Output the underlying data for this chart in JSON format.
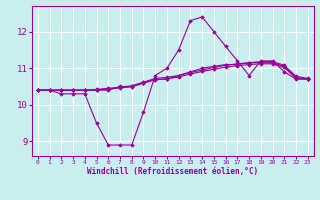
{
  "title": "",
  "xlabel": "Windchill (Refroidissement éolien,°C)",
  "ylabel": "",
  "bg_color": "#c8eef0",
  "grid_color": "#ffffff",
  "line_color": "#990099",
  "x_ticks": [
    0,
    1,
    2,
    3,
    4,
    5,
    6,
    7,
    8,
    9,
    10,
    11,
    12,
    13,
    14,
    15,
    16,
    17,
    18,
    19,
    20,
    21,
    22,
    23
  ],
  "ylim": [
    8.6,
    12.7
  ],
  "xlim": [
    -0.5,
    23.5
  ],
  "y_ticks": [
    9,
    10,
    11,
    12
  ],
  "series": [
    [
      10.4,
      10.4,
      10.3,
      10.3,
      10.3,
      9.5,
      8.9,
      8.9,
      8.9,
      9.8,
      10.8,
      11.0,
      11.5,
      12.3,
      12.4,
      12.0,
      11.6,
      11.2,
      10.8,
      11.2,
      11.2,
      10.9,
      10.7,
      10.7
    ],
    [
      10.4,
      10.4,
      10.4,
      10.4,
      10.4,
      10.4,
      10.4,
      10.5,
      10.5,
      10.6,
      10.7,
      10.7,
      10.8,
      10.9,
      11.0,
      11.05,
      11.1,
      11.1,
      11.15,
      11.15,
      11.15,
      11.05,
      10.75,
      10.7
    ],
    [
      10.4,
      10.4,
      10.4,
      10.4,
      10.4,
      10.42,
      10.45,
      10.48,
      10.52,
      10.62,
      10.72,
      10.75,
      10.8,
      10.88,
      10.95,
      11.02,
      11.08,
      11.12,
      11.15,
      11.18,
      11.18,
      11.08,
      10.78,
      10.72
    ],
    [
      10.4,
      10.4,
      10.4,
      10.4,
      10.4,
      10.41,
      10.43,
      10.46,
      10.49,
      10.59,
      10.68,
      10.71,
      10.76,
      10.84,
      10.91,
      10.97,
      11.03,
      11.07,
      11.1,
      11.12,
      11.12,
      11.02,
      10.72,
      10.7
    ]
  ]
}
